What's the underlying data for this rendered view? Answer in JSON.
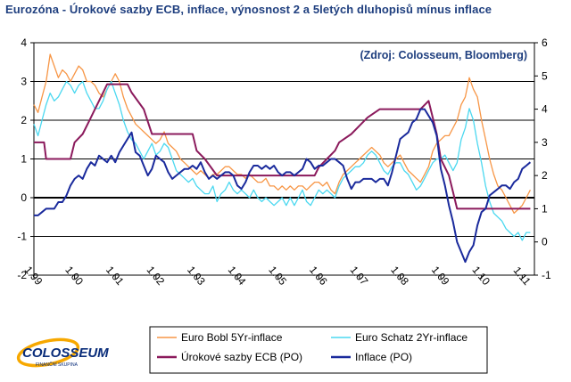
{
  "title": "Eurozóna - Úrokové sazby ECB, inflace, výnosnost 2 a 5letých dluhopisů mínus inflace",
  "source_note": "(Zdroj: Colosseum, Bloomberg)",
  "logo": {
    "name": "COLOSSEUM",
    "tagline": "FINANČNÍ SKUPINA"
  },
  "colors": {
    "bobl": "#f79646",
    "schatz": "#4bd8f0",
    "ecb": "#8b1a5c",
    "inflace": "#1a2a9c"
  },
  "chart_data": {
    "type": "line",
    "x_tick_labels": [
      "1.99",
      "1.00",
      "1.01",
      "1.02",
      "1.03",
      "1.04",
      "1.05",
      "1.06",
      "1.07",
      "1.08",
      "1.09",
      "1.10",
      "1.11"
    ],
    "x_range": [
      1999.0,
      2011.3
    ],
    "y_left": {
      "ticks": [
        "-2",
        "-1",
        "0",
        "1",
        "2",
        "3",
        "4"
      ],
      "range": [
        -2,
        4
      ]
    },
    "y_right": {
      "ticks": [
        "-1",
        "0",
        "1",
        "2",
        "3",
        "4",
        "5",
        "6"
      ],
      "range": [
        -1,
        6
      ]
    },
    "grid": true,
    "legend_position": "bottom",
    "series": [
      {
        "name": "Euro Bobl 5Yr-inflace",
        "axis": "left",
        "color": "#f79646",
        "x": [
          1999.0,
          1999.1,
          1999.2,
          1999.3,
          1999.4,
          1999.5,
          1999.6,
          1999.7,
          1999.8,
          1999.9,
          2000.0,
          2000.1,
          2000.2,
          2000.3,
          2000.4,
          2000.5,
          2000.6,
          2000.7,
          2000.8,
          2000.9,
          2001.0,
          2001.1,
          2001.2,
          2001.3,
          2001.4,
          2001.5,
          2001.6,
          2001.7,
          2001.8,
          2001.9,
          2002.0,
          2002.1,
          2002.2,
          2002.3,
          2002.4,
          2002.5,
          2002.6,
          2002.7,
          2002.8,
          2002.9,
          2003.0,
          2003.1,
          2003.2,
          2003.3,
          2003.4,
          2003.5,
          2003.6,
          2003.7,
          2003.8,
          2003.9,
          2004.0,
          2004.1,
          2004.2,
          2004.3,
          2004.4,
          2004.5,
          2004.6,
          2004.7,
          2004.8,
          2004.9,
          2005.0,
          2005.1,
          2005.2,
          2005.3,
          2005.4,
          2005.5,
          2005.6,
          2005.7,
          2005.8,
          2005.9,
          2006.0,
          2006.1,
          2006.2,
          2006.3,
          2006.4,
          2006.5,
          2006.6,
          2006.7,
          2006.8,
          2006.9,
          2007.0,
          2007.1,
          2007.2,
          2007.3,
          2007.4,
          2007.5,
          2007.6,
          2007.7,
          2007.8,
          2007.9,
          2008.0,
          2008.1,
          2008.2,
          2008.3,
          2008.4,
          2008.5,
          2008.6,
          2008.7,
          2008.8,
          2008.9,
          2009.0,
          2009.1,
          2009.2,
          2009.3,
          2009.4,
          2009.5,
          2009.6,
          2009.7,
          2009.8,
          2009.9,
          2010.0,
          2010.1,
          2010.2,
          2010.3,
          2010.4,
          2010.5,
          2010.6,
          2010.7,
          2010.8,
          2010.9,
          2011.0,
          2011.1,
          2011.2
        ],
        "y": [
          2.4,
          2.2,
          2.6,
          3.0,
          3.7,
          3.4,
          3.1,
          3.3,
          3.2,
          3.0,
          3.2,
          3.4,
          3.3,
          3.0,
          3.0,
          2.9,
          2.7,
          2.6,
          2.8,
          3.0,
          3.2,
          3.0,
          2.6,
          2.3,
          2.1,
          1.9,
          1.8,
          1.7,
          1.6,
          1.5,
          1.4,
          1.5,
          1.7,
          1.4,
          1.3,
          1.2,
          1.0,
          0.9,
          0.8,
          0.7,
          0.6,
          0.7,
          0.6,
          0.5,
          0.6,
          0.6,
          0.7,
          0.8,
          0.8,
          0.7,
          0.6,
          0.6,
          0.5,
          0.6,
          0.5,
          0.4,
          0.4,
          0.5,
          0.3,
          0.3,
          0.2,
          0.3,
          0.2,
          0.3,
          0.2,
          0.3,
          0.3,
          0.2,
          0.3,
          0.4,
          0.4,
          0.3,
          0.4,
          0.2,
          0.1,
          0.4,
          0.6,
          0.7,
          0.8,
          0.9,
          1.0,
          1.1,
          1.2,
          1.3,
          1.2,
          1.1,
          0.9,
          0.8,
          0.9,
          1.0,
          1.1,
          0.9,
          0.7,
          0.6,
          0.5,
          0.4,
          0.6,
          0.8,
          1.2,
          1.4,
          1.5,
          1.6,
          1.6,
          1.8,
          2.0,
          2.4,
          2.6,
          3.1,
          2.8,
          2.6,
          2.0,
          1.5,
          1.0,
          0.6,
          0.3,
          0.2,
          0.0,
          -0.2,
          -0.4,
          -0.3,
          -0.2,
          0.0,
          0.2
        ]
      },
      {
        "name": "Euro Schatz 2Yr-inflace",
        "axis": "left",
        "color": "#4bd8f0",
        "x": [
          1999.0,
          1999.1,
          1999.2,
          1999.3,
          1999.4,
          1999.5,
          1999.6,
          1999.7,
          1999.8,
          1999.9,
          2000.0,
          2000.1,
          2000.2,
          2000.3,
          2000.4,
          2000.5,
          2000.6,
          2000.7,
          2000.8,
          2000.9,
          2001.0,
          2001.1,
          2001.2,
          2001.3,
          2001.4,
          2001.5,
          2001.6,
          2001.7,
          2001.8,
          2001.9,
          2002.0,
          2002.1,
          2002.2,
          2002.3,
          2002.4,
          2002.5,
          2002.6,
          2002.7,
          2002.8,
          2002.9,
          2003.0,
          2003.1,
          2003.2,
          2003.3,
          2003.4,
          2003.5,
          2003.6,
          2003.7,
          2003.8,
          2003.9,
          2004.0,
          2004.1,
          2004.2,
          2004.3,
          2004.4,
          2004.5,
          2004.6,
          2004.7,
          2004.8,
          2004.9,
          2005.0,
          2005.1,
          2005.2,
          2005.3,
          2005.4,
          2005.5,
          2005.6,
          2005.7,
          2005.8,
          2005.9,
          2006.0,
          2006.1,
          2006.2,
          2006.3,
          2006.4,
          2006.5,
          2006.6,
          2006.7,
          2006.8,
          2006.9,
          2007.0,
          2007.1,
          2007.2,
          2007.3,
          2007.4,
          2007.5,
          2007.6,
          2007.7,
          2007.8,
          2007.9,
          2008.0,
          2008.1,
          2008.2,
          2008.3,
          2008.4,
          2008.5,
          2008.6,
          2008.7,
          2008.8,
          2008.9,
          2009.0,
          2009.1,
          2009.2,
          2009.3,
          2009.4,
          2009.5,
          2009.6,
          2009.7,
          2009.8,
          2009.9,
          2010.0,
          2010.1,
          2010.2,
          2010.3,
          2010.4,
          2010.5,
          2010.6,
          2010.7,
          2010.8,
          2010.9,
          2011.0,
          2011.1,
          2011.2
        ],
        "y": [
          1.9,
          1.6,
          2.0,
          2.4,
          2.7,
          2.5,
          2.6,
          2.8,
          3.0,
          2.9,
          2.7,
          2.9,
          3.0,
          2.7,
          2.5,
          2.3,
          2.3,
          2.5,
          2.8,
          3.0,
          2.7,
          2.4,
          2.0,
          1.7,
          1.5,
          1.4,
          1.2,
          1.0,
          1.2,
          1.4,
          1.1,
          1.2,
          1.4,
          1.3,
          1.0,
          0.7,
          0.6,
          0.5,
          0.4,
          0.5,
          0.3,
          0.2,
          0.1,
          0.1,
          0.3,
          -0.1,
          0.1,
          0.2,
          0.4,
          0.2,
          0.1,
          0.2,
          0.1,
          0.0,
          0.2,
          0.0,
          -0.1,
          0.0,
          -0.1,
          -0.2,
          -0.1,
          0.0,
          -0.2,
          0.0,
          -0.2,
          0.0,
          0.2,
          -0.1,
          -0.2,
          0.0,
          0.2,
          0.1,
          0.2,
          0.1,
          0.0,
          0.3,
          0.5,
          0.6,
          0.7,
          0.8,
          0.8,
          0.9,
          1.1,
          1.2,
          1.1,
          0.9,
          0.7,
          0.6,
          0.8,
          0.9,
          0.9,
          0.7,
          0.6,
          0.4,
          0.2,
          0.3,
          0.5,
          0.7,
          0.9,
          1.0,
          1.0,
          1.1,
          0.9,
          0.7,
          0.9,
          1.5,
          1.8,
          2.3,
          2.0,
          1.4,
          0.9,
          0.3,
          -0.1,
          -0.4,
          -0.5,
          -0.6,
          -0.8,
          -0.9,
          -1.0,
          -0.9,
          -1.1,
          -0.9,
          -0.9
        ]
      },
      {
        "name": "Úrokové sazby ECB (PO)",
        "axis": "right",
        "color": "#8b1a5c",
        "x": [
          1999.0,
          1999.25,
          1999.3,
          1999.9,
          2000.0,
          2000.2,
          2000.4,
          2000.6,
          2000.8,
          2001.3,
          2001.4,
          2001.7,
          2001.9,
          2002.9,
          2003.0,
          2003.2,
          2003.5,
          2005.9,
          2006.0,
          2006.2,
          2006.4,
          2006.5,
          2006.8,
          2007.0,
          2007.2,
          2007.5,
          2008.5,
          2008.7,
          2008.8,
          2008.9,
          2009.0,
          2009.2,
          2009.3,
          2009.4,
          2011.2
        ],
        "y": [
          3.0,
          3.0,
          2.5,
          2.5,
          3.0,
          3.25,
          3.75,
          4.25,
          4.75,
          4.75,
          4.5,
          4.0,
          3.25,
          3.25,
          2.75,
          2.5,
          2.0,
          2.0,
          2.25,
          2.5,
          2.75,
          3.0,
          3.25,
          3.5,
          3.75,
          4.0,
          4.0,
          4.25,
          3.75,
          3.25,
          2.5,
          2.0,
          1.5,
          1.0,
          1.0
        ]
      },
      {
        "name": "Inflace (PO)",
        "axis": "right",
        "color": "#1a2a9c",
        "x": [
          1999.0,
          1999.1,
          1999.2,
          1999.3,
          1999.4,
          1999.5,
          1999.6,
          1999.7,
          1999.8,
          1999.9,
          2000.0,
          2000.1,
          2000.2,
          2000.3,
          2000.4,
          2000.5,
          2000.6,
          2000.7,
          2000.8,
          2000.9,
          2001.0,
          2001.1,
          2001.2,
          2001.3,
          2001.4,
          2001.5,
          2001.6,
          2001.7,
          2001.8,
          2001.9,
          2002.0,
          2002.1,
          2002.2,
          2002.3,
          2002.4,
          2002.5,
          2002.6,
          2002.7,
          2002.8,
          2002.9,
          2003.0,
          2003.1,
          2003.2,
          2003.3,
          2003.4,
          2003.5,
          2003.6,
          2003.7,
          2003.8,
          2003.9,
          2004.0,
          2004.1,
          2004.2,
          2004.3,
          2004.4,
          2004.5,
          2004.6,
          2004.7,
          2004.8,
          2004.9,
          2005.0,
          2005.1,
          2005.2,
          2005.3,
          2005.4,
          2005.5,
          2005.6,
          2005.7,
          2005.8,
          2005.9,
          2006.0,
          2006.1,
          2006.2,
          2006.3,
          2006.4,
          2006.5,
          2006.6,
          2006.7,
          2006.8,
          2006.9,
          2007.0,
          2007.1,
          2007.2,
          2007.3,
          2007.4,
          2007.5,
          2007.6,
          2007.7,
          2007.8,
          2007.9,
          2008.0,
          2008.1,
          2008.2,
          2008.3,
          2008.4,
          2008.5,
          2008.6,
          2008.7,
          2008.8,
          2008.9,
          2009.0,
          2009.1,
          2009.2,
          2009.3,
          2009.4,
          2009.5,
          2009.6,
          2009.7,
          2009.8,
          2009.9,
          2010.0,
          2010.1,
          2010.2,
          2010.3,
          2010.4,
          2010.5,
          2010.6,
          2010.7,
          2010.8,
          2010.9,
          2011.0,
          2011.1,
          2011.2
        ],
        "y": [
          0.8,
          0.8,
          0.9,
          1.0,
          1.0,
          1.0,
          1.2,
          1.2,
          1.4,
          1.7,
          1.9,
          2.0,
          1.9,
          2.2,
          2.4,
          2.3,
          2.6,
          2.5,
          2.4,
          2.6,
          2.4,
          2.7,
          2.9,
          3.1,
          3.3,
          2.7,
          2.6,
          2.3,
          2.0,
          2.2,
          2.6,
          2.5,
          2.4,
          2.1,
          1.9,
          2.0,
          2.1,
          2.2,
          2.2,
          2.3,
          2.2,
          2.4,
          2.1,
          1.9,
          2.0,
          1.9,
          2.0,
          2.1,
          2.1,
          2.0,
          1.7,
          1.6,
          1.8,
          2.1,
          2.3,
          2.3,
          2.2,
          2.3,
          2.2,
          2.3,
          2.1,
          2.0,
          2.1,
          2.1,
          2.0,
          2.1,
          2.2,
          2.5,
          2.4,
          2.2,
          2.3,
          2.3,
          2.4,
          2.5,
          2.5,
          2.4,
          2.3,
          1.9,
          1.6,
          1.8,
          1.8,
          1.9,
          1.9,
          1.9,
          1.8,
          1.9,
          1.9,
          1.7,
          2.1,
          2.6,
          3.1,
          3.2,
          3.3,
          3.6,
          3.7,
          4.0,
          4.0,
          3.8,
          3.6,
          3.2,
          2.2,
          1.7,
          1.1,
          0.6,
          0.0,
          -0.3,
          -0.6,
          -0.3,
          -0.1,
          0.5,
          0.9,
          1.0,
          1.4,
          1.5,
          1.6,
          1.7,
          1.7,
          1.6,
          1.8,
          1.9,
          2.2,
          2.3,
          2.4
        ]
      }
    ]
  }
}
